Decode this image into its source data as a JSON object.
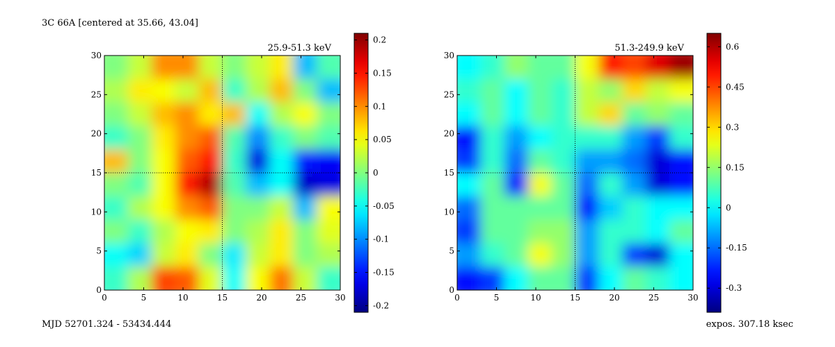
{
  "title": "3C 66A [centered at  35.66, 43.04]",
  "footer_left": "MJD 52701.324 - 53434.444",
  "footer_right": "expos. 307.18 ksec",
  "chart_data": [
    {
      "type": "heatmap",
      "title": "25.9-51.3 keV",
      "colormap": "jet",
      "x": [
        1.5,
        4.5,
        7.5,
        10.5,
        13.5,
        16.5,
        19.5,
        22.5,
        25.5,
        28.5
      ],
      "y": [
        28.5,
        25.5,
        22.5,
        19.5,
        16.5,
        13.5,
        10.5,
        7.5,
        4.5,
        1.5
      ],
      "values": [
        [
          0.0,
          0.03,
          0.1,
          0.1,
          0.03,
          0.0,
          0.03,
          0.06,
          -0.08,
          -0.02
        ],
        [
          0.02,
          0.06,
          0.05,
          0.03,
          0.08,
          -0.03,
          0.02,
          0.08,
          0.0,
          -0.08
        ],
        [
          0.0,
          0.03,
          0.08,
          0.1,
          0.06,
          0.08,
          -0.05,
          0.02,
          0.05,
          0.0
        ],
        [
          -0.03,
          0.0,
          0.06,
          0.1,
          0.12,
          -0.02,
          -0.1,
          -0.03,
          0.0,
          -0.02
        ],
        [
          0.08,
          0.0,
          0.05,
          0.12,
          0.15,
          -0.03,
          -0.17,
          -0.05,
          -0.15,
          -0.16
        ],
        [
          0.0,
          -0.02,
          0.05,
          0.15,
          0.19,
          -0.02,
          -0.08,
          -0.05,
          -0.18,
          -0.17
        ],
        [
          -0.03,
          0.02,
          0.05,
          0.1,
          0.12,
          0.0,
          0.0,
          0.03,
          -0.08,
          0.05
        ],
        [
          0.0,
          -0.03,
          0.02,
          0.05,
          0.06,
          0.0,
          0.02,
          0.06,
          0.0,
          0.04
        ],
        [
          -0.05,
          -0.07,
          0.03,
          0.06,
          0.0,
          -0.06,
          0.03,
          0.06,
          0.0,
          0.02
        ],
        [
          -0.03,
          0.02,
          0.13,
          0.12,
          0.04,
          -0.05,
          0.05,
          0.11,
          0.03,
          -0.03
        ]
      ],
      "xlim": [
        0,
        30
      ],
      "ylim": [
        0,
        30
      ],
      "xticks": [
        0,
        5,
        10,
        15,
        20,
        25,
        30
      ],
      "yticks": [
        0,
        5,
        10,
        15,
        20,
        25,
        30
      ],
      "crosshair": [
        15,
        15
      ],
      "clim": [
        -0.21,
        0.21
      ],
      "cticks": [
        -0.2,
        -0.15,
        -0.1,
        -0.05,
        0,
        0.05,
        0.1,
        0.15,
        0.2
      ]
    },
    {
      "type": "heatmap",
      "title": "51.3-249.9 keV",
      "colormap": "jet",
      "x": [
        1.5,
        4.5,
        7.5,
        10.5,
        13.5,
        16.5,
        19.5,
        22.5,
        25.5,
        28.5
      ],
      "y": [
        28.5,
        25.5,
        22.5,
        19.5,
        16.5,
        13.5,
        10.5,
        7.5,
        4.5,
        1.5
      ],
      "values": [
        [
          0.0,
          0.05,
          0.15,
          0.1,
          0.1,
          0.25,
          0.5,
          0.45,
          0.55,
          0.62
        ],
        [
          0.05,
          0.1,
          0.0,
          0.1,
          0.05,
          0.2,
          0.15,
          0.3,
          0.2,
          0.25
        ],
        [
          0.0,
          0.1,
          0.0,
          0.1,
          0.05,
          0.2,
          0.3,
          0.1,
          0.15,
          0.1
        ],
        [
          -0.25,
          0.05,
          -0.1,
          0.0,
          0.05,
          0.05,
          0.05,
          -0.1,
          -0.2,
          0.05
        ],
        [
          -0.2,
          0.05,
          -0.15,
          0.1,
          0.05,
          -0.1,
          -0.1,
          -0.15,
          -0.3,
          -0.25
        ],
        [
          0.0,
          0.1,
          -0.25,
          0.25,
          0.1,
          -0.15,
          0.05,
          -0.1,
          -0.3,
          -0.25
        ],
        [
          -0.15,
          0.1,
          0.1,
          0.1,
          0.1,
          -0.25,
          -0.05,
          0.05,
          0.0,
          0.0
        ],
        [
          -0.2,
          0.1,
          0.1,
          0.15,
          0.15,
          -0.1,
          0.05,
          0.05,
          0.0,
          0.1
        ],
        [
          -0.1,
          0.05,
          0.1,
          0.25,
          0.15,
          -0.1,
          0.05,
          -0.2,
          -0.3,
          0.0
        ],
        [
          -0.25,
          -0.2,
          0.0,
          0.1,
          0.1,
          -0.2,
          0.0,
          0.1,
          0.05,
          0.0
        ]
      ],
      "xlim": [
        0,
        30
      ],
      "ylim": [
        0,
        30
      ],
      "xticks": [
        0,
        5,
        10,
        15,
        20,
        25,
        30
      ],
      "yticks": [
        0,
        5,
        10,
        15,
        20,
        25,
        30
      ],
      "crosshair": [
        15,
        15
      ],
      "clim": [
        -0.39,
        0.65
      ],
      "cticks": [
        -0.3,
        -0.15,
        0,
        0.15,
        0.3,
        0.45,
        0.6
      ]
    }
  ]
}
